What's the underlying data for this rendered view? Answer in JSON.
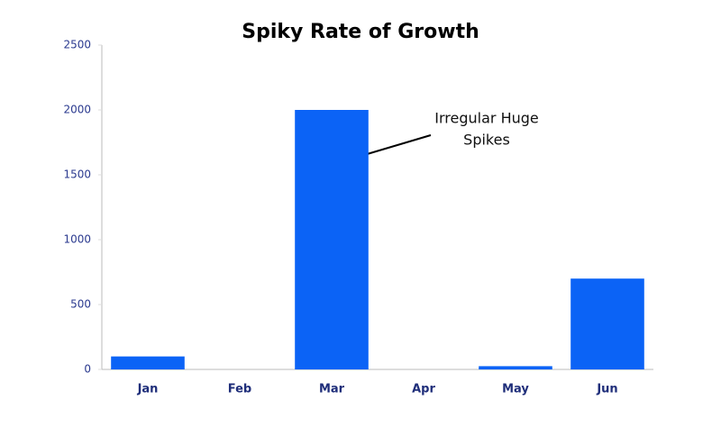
{
  "chart_data": {
    "type": "bar",
    "title": "Spiky Rate of Growth",
    "categories": [
      "Jan",
      "Feb",
      "Mar",
      "Apr",
      "May",
      "Jun"
    ],
    "values": [
      100,
      0,
      2000,
      0,
      25,
      700
    ],
    "color": "#0b63f6",
    "ylim": [
      0,
      2500
    ],
    "yticks": [
      0,
      500,
      1000,
      1500,
      2000,
      2500
    ],
    "annotation": [
      "Irregular Huge",
      "Spikes"
    ]
  }
}
